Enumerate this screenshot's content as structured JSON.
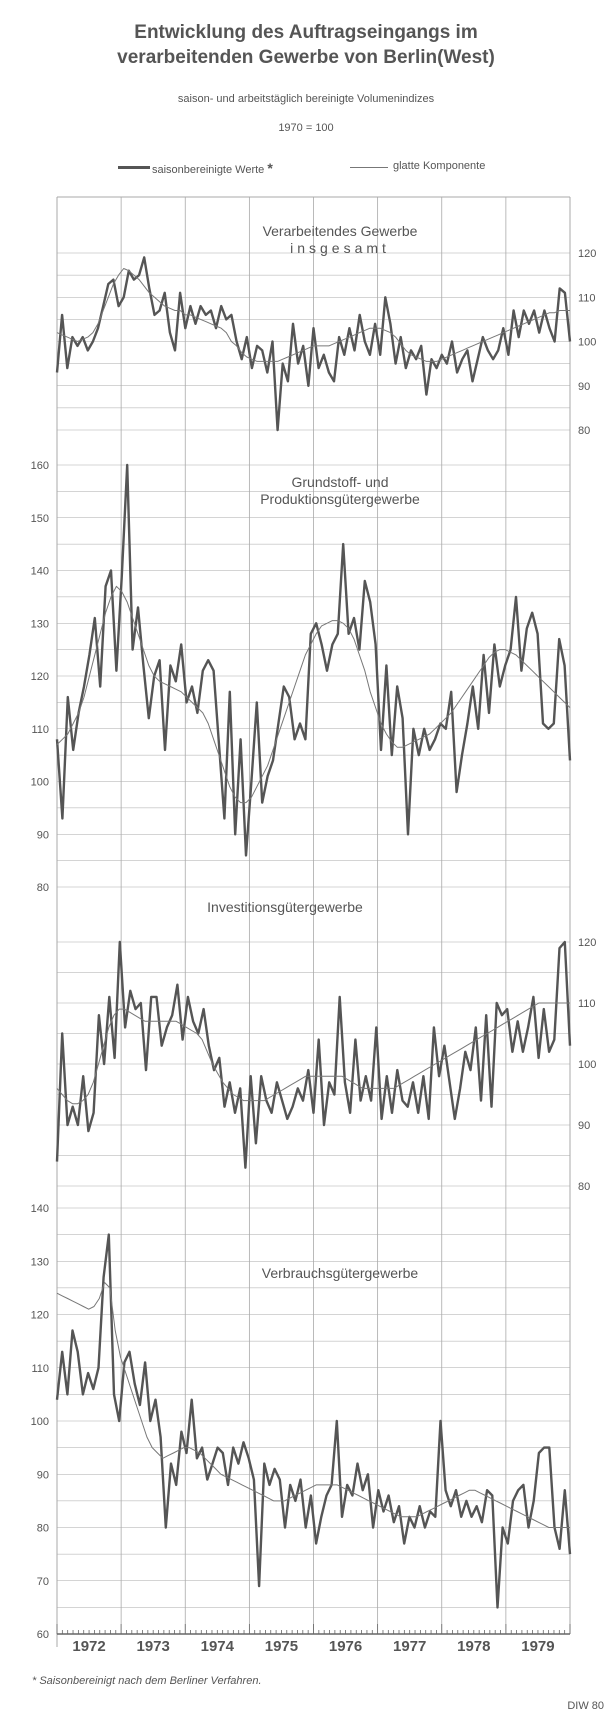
{
  "title": {
    "line1": "Entwicklung des Auftragseingangs im",
    "line2": "verarbeitenden Gewerbe von Berlin(West)"
  },
  "subtitle": "saison- und arbeitstäglich bereinigte Volumenindizes",
  "base_note": "1970 = 100",
  "legend": {
    "thick": "saisonbereinigte Werte",
    "thick_mark": "*",
    "thin": "glatte Komponente"
  },
  "footnote": "* Saisonbereinigt nach dem Berliner Verfahren.",
  "credit": "DIW 80",
  "colors": {
    "thick": "#555555",
    "thin": "#777777",
    "grid": "#a9a9a9",
    "text": "#555555"
  },
  "chart_data": {
    "type": "line",
    "x_labels": [
      "1972",
      "1973",
      "1974",
      "1975",
      "1976",
      "1977",
      "1978",
      "1979"
    ],
    "x_range": [
      "1971-12",
      "1979-12"
    ],
    "panels": [
      {
        "name": "Verarbeitendes Gewerbe",
        "name_line2": "insgesamt",
        "axis": "right",
        "ticks": [
          80,
          90,
          100,
          110,
          120
        ],
        "ylim": [
          80,
          123
        ],
        "series": [
          {
            "name": "saisonbereinigte Werte",
            "style": "thick",
            "values": [
              93,
              106,
              94,
              101,
              99,
              101,
              98,
              100,
              103,
              108,
              113,
              114,
              108,
              110,
              116,
              114,
              115,
              119,
              112,
              106,
              107,
              111,
              102,
              98,
              111,
              103,
              108,
              104,
              108,
              106,
              107,
              103,
              108,
              105,
              106,
              100,
              96,
              101,
              94,
              99,
              98,
              93,
              100,
              80,
              95,
              91,
              104,
              95,
              99,
              90,
              103,
              94,
              97,
              93,
              91,
              101,
              97,
              103,
              98,
              106,
              100,
              97,
              104,
              97,
              110,
              104,
              95,
              101,
              94,
              98,
              96,
              99,
              88,
              96,
              94,
              97,
              95,
              100,
              93,
              96,
              98,
              91,
              96,
              101,
              98,
              96,
              98,
              103,
              97,
              107,
              101,
              107,
              104,
              107,
              102,
              107,
              103,
              100,
              112,
              111,
              100
            ]
          },
          {
            "name": "glatte Komponente",
            "style": "thin",
            "values": [
              102,
              101.5,
              101,
              100.5,
              100,
              100.5,
              101,
              102,
              104,
              107,
              110,
              113,
              115,
              116.5,
              116,
              115,
              114,
              112.5,
              111,
              110,
              109,
              108,
              107.5,
              107,
              107,
              106,
              106,
              105.5,
              105,
              104.5,
              104,
              103.5,
              103,
              102,
              100,
              99,
              97.5,
              96.5,
              96,
              95.5,
              95.5,
              95.5,
              95.5,
              95.5,
              96,
              96.5,
              97,
              97.5,
              98,
              98.5,
              99,
              99,
              99,
              99,
              99.5,
              100,
              100.5,
              101,
              101.5,
              102,
              102.5,
              103,
              103,
              103,
              102.5,
              102,
              101,
              99.5,
              98,
              97,
              96.5,
              96,
              95.5,
              95.5,
              95.5,
              96,
              96.5,
              97,
              97.5,
              98,
              98.5,
              99,
              99.5,
              100,
              100.5,
              101,
              101.5,
              102,
              102.5,
              103,
              103.5,
              104,
              104.5,
              105,
              105.5,
              106,
              106.5,
              106.5,
              107,
              107,
              107
            ]
          }
        ]
      },
      {
        "name": "Grundstoff- und",
        "name_line2": "Produktionsgütergewerbe",
        "axis": "left",
        "ticks": [
          80,
          90,
          100,
          110,
          120,
          130,
          140,
          150,
          160
        ],
        "ylim": [
          77,
          164
        ],
        "series": [
          {
            "name": "saisonbereinigte Werte",
            "style": "thick",
            "values": [
              108,
              93,
              116,
              106,
              113,
              118,
              124,
              131,
              118,
              137,
              140,
              121,
              139,
              160,
              125,
              133,
              122,
              112,
              120,
              123,
              106,
              122,
              119,
              126,
              115,
              118,
              113,
              121,
              123,
              121,
              107,
              93,
              117,
              90,
              108,
              86,
              100,
              115,
              96,
              101,
              104,
              111,
              118,
              116,
              108,
              111,
              108,
              128,
              130,
              126,
              121,
              126,
              128,
              145,
              128,
              131,
              125,
              138,
              134,
              126,
              106,
              122,
              105,
              118,
              112,
              90,
              110,
              105,
              110,
              106,
              108,
              111,
              110,
              117,
              98,
              105,
              111,
              118,
              110,
              124,
              113,
              126,
              118,
              122,
              125,
              135,
              121,
              129,
              132,
              128,
              111,
              110,
              111,
              127,
              122,
              104
            ]
          },
          {
            "name": "glatte Komponente",
            "style": "thin",
            "values": [
              107,
              108,
              109,
              111,
              113,
              116,
              120,
              124,
              128,
              132,
              135,
              137,
              136,
              134,
              131,
              128,
              125,
              122,
              120,
              119,
              118.5,
              118,
              117.5,
              117,
              116,
              115,
              114,
              113,
              111,
              108,
              105,
              102,
              99,
              97,
              96,
              96,
              97,
              99,
              101,
              103,
              106,
              109,
              112,
              115,
              118,
              121,
              124,
              126,
              128,
              129.5,
              130,
              130.5,
              130.5,
              130,
              129,
              127,
              124,
              121,
              117,
              114,
              111,
              109,
              107.5,
              106.5,
              106.5,
              107,
              107.5,
              108,
              108.5,
              109,
              110,
              111,
              112,
              113,
              114.5,
              116,
              117.5,
              119,
              120.5,
              122,
              123.5,
              124.5,
              125,
              125,
              124.5,
              124,
              123,
              122,
              121,
              120,
              119,
              118,
              117,
              116,
              115,
              114
            ]
          }
        ]
      },
      {
        "name": "Investitionsgütergewerbe",
        "axis": "right",
        "ticks": [
          80,
          90,
          100,
          110,
          120
        ],
        "ylim": [
          80,
          124
        ],
        "series": [
          {
            "name": "saisonbereinigte Werte",
            "style": "thick",
            "values": [
              84,
              105,
              90,
              93,
              90,
              98,
              89,
              92,
              108,
              100,
              111,
              101,
              120,
              106,
              112,
              109,
              110,
              99,
              111,
              111,
              103,
              106,
              108,
              113,
              104,
              111,
              107,
              105,
              109,
              103,
              99,
              101,
              93,
              97,
              92,
              96,
              83,
              98,
              87,
              98,
              94,
              92,
              97,
              94,
              91,
              93,
              96,
              94,
              99,
              92,
              104,
              90,
              97,
              95,
              111,
              97,
              92,
              104,
              94,
              98,
              94,
              106,
              91,
              98,
              92,
              99,
              94,
              93,
              97,
              92,
              98,
              91,
              106,
              98,
              103,
              97,
              91,
              96,
              102,
              99,
              106,
              94,
              108,
              93,
              110,
              108,
              109,
              102,
              107,
              102,
              106,
              111,
              101,
              109,
              102,
              104,
              119,
              120,
              103
            ]
          },
          {
            "name": "glatte Komponente",
            "style": "thin",
            "values": [
              96,
              95,
              94,
              93.5,
              93.5,
              94,
              95,
              97,
              100,
              103,
              106,
              108,
              109,
              109,
              108.5,
              108,
              107.5,
              107,
              107,
              107,
              107,
              107,
              107,
              107,
              106.5,
              106,
              105.5,
              105,
              104,
              102,
              100,
              98.5,
              97,
              96,
              95,
              94.5,
              94,
              94,
              94,
              94,
              94,
              94.5,
              95,
              95.5,
              96,
              96.5,
              97,
              97.5,
              98,
              98,
              98,
              98,
              98,
              98,
              98,
              98,
              97.5,
              97,
              96.5,
              96,
              96,
              96,
              96,
              96,
              96,
              96,
              96.5,
              97,
              97.5,
              98,
              98.5,
              99,
              99.5,
              100,
              100.5,
              101,
              101.5,
              102,
              102.5,
              103,
              103.5,
              104,
              104.5,
              105,
              105.5,
              106,
              106.5,
              107,
              107.5,
              108,
              108.5,
              109,
              109.5,
              110,
              110,
              110,
              110,
              110,
              110,
              110
            ]
          }
        ]
      },
      {
        "name": "Verbrauchsgütergewerbe",
        "axis": "left",
        "ticks": [
          60,
          70,
          80,
          90,
          100,
          110,
          120,
          130,
          140
        ],
        "ylim": [
          58,
          145
        ],
        "series": [
          {
            "name": "saisonbereinigte Werte",
            "style": "thick",
            "values": [
              104,
              113,
              105,
              117,
              113,
              105,
              109,
              106,
              110,
              127,
              135,
              105,
              100,
              111,
              113,
              107,
              103,
              111,
              100,
              104,
              97,
              80,
              92,
              88,
              98,
              94,
              104,
              93,
              95,
              89,
              92,
              95,
              94,
              88,
              95,
              92,
              96,
              93,
              89,
              69,
              92,
              88,
              91,
              89,
              80,
              88,
              85,
              89,
              80,
              86,
              77,
              82,
              86,
              88,
              100,
              82,
              88,
              86,
              92,
              87,
              90,
              80,
              87,
              83,
              86,
              81,
              84,
              77,
              82,
              80,
              84,
              80,
              83,
              82,
              100,
              87,
              84,
              87,
              82,
              85,
              82,
              84,
              81,
              87,
              86,
              65,
              80,
              77,
              85,
              87,
              88,
              80,
              85,
              94,
              95,
              95,
              80,
              76,
              87,
              75
            ]
          },
          {
            "name": "glatte Komponente",
            "style": "thin",
            "values": [
              124,
              123.5,
              123,
              122.5,
              122,
              121.5,
              121,
              121.5,
              123,
              126,
              125,
              117,
              112,
              109,
              106,
              103,
              100,
              97,
              95,
              94,
              93,
              93.5,
              94,
              94.5,
              95,
              95,
              94.5,
              94,
              93,
              92,
              91,
              90,
              89.5,
              89,
              88.5,
              88,
              87.5,
              87,
              86.5,
              86,
              85.5,
              85,
              85,
              85,
              85.5,
              86,
              86.5,
              87,
              87.5,
              88,
              88,
              88,
              88,
              88,
              87.5,
              87,
              86.5,
              86,
              85.5,
              85,
              84.5,
              84,
              83.5,
              83,
              82.5,
              82,
              82,
              82,
              82,
              82.5,
              83,
              83.5,
              84,
              84.5,
              85,
              85.5,
              86,
              86.5,
              87,
              87,
              86.5,
              86,
              85.5,
              85,
              84.5,
              84,
              83.5,
              83,
              82.5,
              82,
              81.5,
              81,
              80.5,
              80,
              80,
              80,
              80,
              80
            ]
          }
        ]
      }
    ]
  }
}
